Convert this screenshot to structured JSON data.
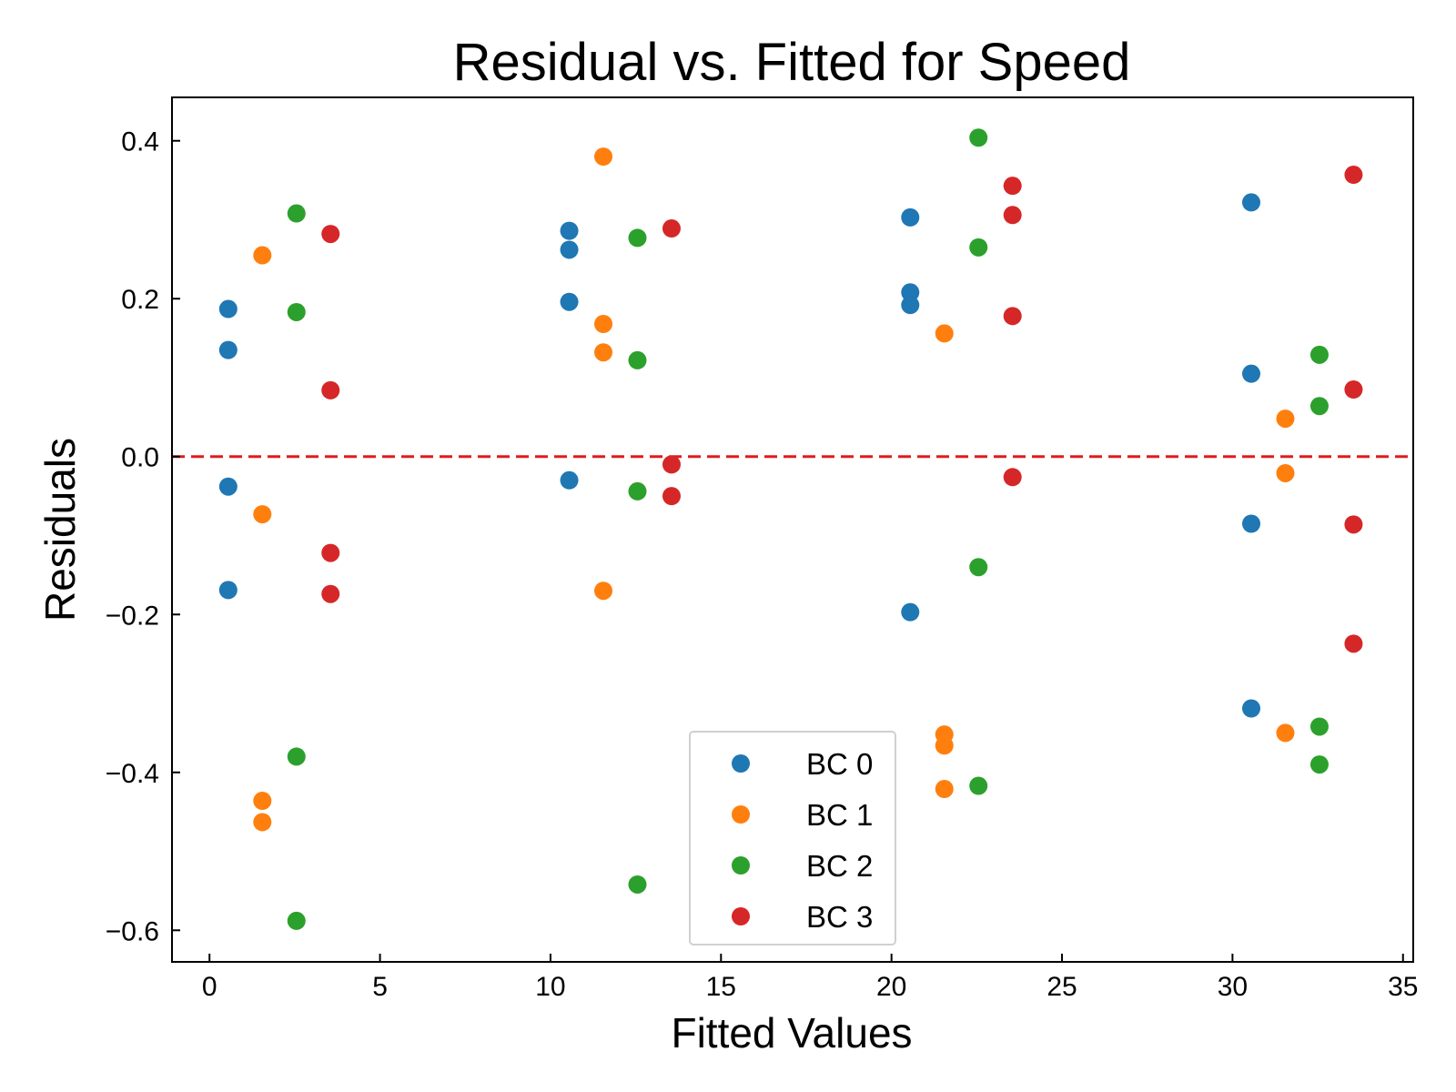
{
  "chart_data": {
    "type": "scatter",
    "title": "Residual vs. Fitted for Speed",
    "xlabel": "Fitted Values",
    "ylabel": "Residuals",
    "xlim": [
      -1.1,
      35.3
    ],
    "ylim": [
      -0.64,
      0.455
    ],
    "x_ticks": [
      0,
      5,
      10,
      15,
      20,
      25,
      30,
      35
    ],
    "y_ticks": [
      0.4,
      0.2,
      0.0,
      -0.2,
      -0.4,
      -0.6
    ],
    "x_tick_labels": [
      "0",
      "5",
      "10",
      "15",
      "20",
      "25",
      "30",
      "35"
    ],
    "y_tick_labels": [
      "0.4",
      "0.2",
      "0.0",
      "−0.2",
      "−0.4",
      "−0.6"
    ],
    "grid": false,
    "legend_position": "lower-center",
    "reference_line": {
      "y": 0.0,
      "color": "#e31a1c",
      "style": "dashed"
    },
    "series": [
      {
        "name": "BC 0",
        "color": "#1f77b4",
        "points": [
          [
            0.55,
            0.187
          ],
          [
            0.55,
            0.135
          ],
          [
            0.55,
            -0.038
          ],
          [
            0.55,
            -0.169
          ],
          [
            10.55,
            0.286
          ],
          [
            10.55,
            0.262
          ],
          [
            10.55,
            0.196
          ],
          [
            10.55,
            -0.03
          ],
          [
            20.55,
            0.303
          ],
          [
            20.55,
            0.208
          ],
          [
            20.55,
            0.192
          ],
          [
            20.55,
            -0.197
          ],
          [
            30.55,
            0.322
          ],
          [
            30.55,
            0.105
          ],
          [
            30.55,
            -0.085
          ],
          [
            30.55,
            -0.319
          ]
        ]
      },
      {
        "name": "BC 1",
        "color": "#ff7f0e",
        "points": [
          [
            1.55,
            0.255
          ],
          [
            1.55,
            -0.073
          ],
          [
            1.55,
            -0.436
          ],
          [
            1.55,
            -0.463
          ],
          [
            11.55,
            0.38
          ],
          [
            11.55,
            0.168
          ],
          [
            11.55,
            0.132
          ],
          [
            11.55,
            -0.17
          ],
          [
            21.55,
            0.156
          ],
          [
            21.55,
            -0.352
          ],
          [
            21.55,
            -0.366
          ],
          [
            21.55,
            -0.421
          ],
          [
            31.55,
            0.048
          ],
          [
            31.55,
            -0.021
          ],
          [
            31.55,
            -0.35
          ]
        ]
      },
      {
        "name": "BC 2",
        "color": "#2ca02c",
        "points": [
          [
            2.55,
            0.308
          ],
          [
            2.55,
            0.183
          ],
          [
            2.55,
            -0.38
          ],
          [
            2.55,
            -0.588
          ],
          [
            12.55,
            0.277
          ],
          [
            12.55,
            0.122
          ],
          [
            12.55,
            -0.044
          ],
          [
            12.55,
            -0.542
          ],
          [
            22.55,
            0.404
          ],
          [
            22.55,
            0.265
          ],
          [
            22.55,
            -0.14
          ],
          [
            22.55,
            -0.417
          ],
          [
            32.55,
            0.129
          ],
          [
            32.55,
            0.064
          ],
          [
            32.55,
            -0.342
          ],
          [
            32.55,
            -0.39
          ]
        ]
      },
      {
        "name": "BC 3",
        "color": "#d62728",
        "points": [
          [
            3.55,
            0.282
          ],
          [
            3.55,
            0.084
          ],
          [
            3.55,
            -0.122
          ],
          [
            3.55,
            -0.174
          ],
          [
            13.55,
            0.289
          ],
          [
            13.55,
            -0.01
          ],
          [
            13.55,
            -0.05
          ],
          [
            23.55,
            0.343
          ],
          [
            23.55,
            0.306
          ],
          [
            23.55,
            0.178
          ],
          [
            23.55,
            -0.026
          ],
          [
            33.55,
            0.357
          ],
          [
            33.55,
            0.085
          ],
          [
            33.55,
            -0.086
          ],
          [
            33.55,
            -0.237
          ]
        ]
      }
    ]
  }
}
